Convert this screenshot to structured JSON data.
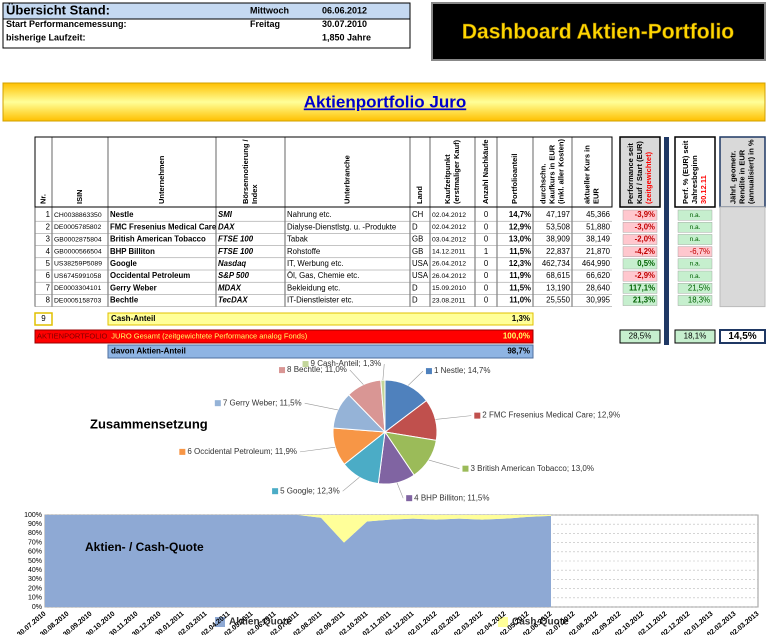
{
  "overview": {
    "rows": [
      [
        "Übersicht Stand:",
        "Mittwoch",
        "06.06.2012"
      ],
      [
        "Start Performancemessung:",
        "Freitag",
        "30.07.2010"
      ],
      [
        "bisherige Laufzeit:",
        "1,850 Jahre"
      ]
    ]
  },
  "title": "Dashboard Aktien-Portfolio",
  "banner": "Aktienportfolio Juro",
  "table": {
    "headers": [
      [
        "Nr."
      ],
      [
        "ISIN"
      ],
      [
        "Unternehmen"
      ],
      [
        "Börsennotierung /",
        "Index"
      ],
      [
        "Unterbranche"
      ],
      [
        "Land"
      ],
      [
        "Kaufzeitpunkt",
        "(erstmaliger Kauf)"
      ],
      [
        "Anzahl Nachkäufe"
      ],
      [
        "Portfolioanteil"
      ],
      [
        "durchschn.",
        "Kaufkurs in EUR",
        "(inkl. aller Kosten)"
      ],
      [
        "aktueller Kurs in",
        "EUR"
      ],
      [
        "Performance seit",
        "Kauf / Start (EUR)",
        "(zeitgewichtet)"
      ],
      [
        "Perf. % (EUR) seit",
        "Jahresbeginn",
        "30.12.11"
      ],
      [
        "Jährl. geometr.",
        "Rendite in EUR",
        "(annualisiert) in %"
      ]
    ],
    "rows": [
      [
        "1",
        "CH0038863350",
        "Nestle",
        "SMI",
        "Nahrung etc.",
        "CH",
        "02.04.2012",
        "0",
        "14,7%",
        "47,197",
        "45,366",
        "-3,9%",
        "n.a."
      ],
      [
        "2",
        "DE0005785802",
        "FMC Fresenius Medical Care",
        "DAX",
        "Dialyse-Dienstlstg. u. -Produkte",
        "D",
        "02.04.2012",
        "0",
        "12,9%",
        "53,508",
        "51,880",
        "-3,0%",
        "n.a."
      ],
      [
        "3",
        "GB0002875804",
        "British American Tobacco",
        "FTSE 100",
        "Tabak",
        "GB",
        "03.04.2012",
        "0",
        "13,0%",
        "38,909",
        "38,149",
        "-2,0%",
        "n.a."
      ],
      [
        "4",
        "GB0000566504",
        "BHP Billiton",
        "FTSE 100",
        "Rohstoffe",
        "GB",
        "14.12.2011",
        "1",
        "11,5%",
        "22,837",
        "21,870",
        "-4,2%",
        "-6,7%"
      ],
      [
        "5",
        "US38259P5089",
        "Google",
        "Nasdaq",
        "IT, Werbung etc.",
        "USA",
        "26.04.2012",
        "0",
        "12,3%",
        "462,734",
        "464,990",
        "0,5%",
        "n.a."
      ],
      [
        "6",
        "US6745991058",
        "Occidental Petroleum",
        "S&P 500",
        "Öl, Gas, Chemie etc.",
        "USA",
        "26.04.2012",
        "0",
        "11,9%",
        "68,615",
        "66,620",
        "-2,9%",
        "n.a."
      ],
      [
        "7",
        "DE0003304101",
        "Gerry Weber",
        "MDAX",
        "Bekleidung etc.",
        "D",
        "15.09.2010",
        "0",
        "11,5%",
        "13,190",
        "28,640",
        "117,1%",
        "21,5%"
      ],
      [
        "8",
        "DE0005158703",
        "Bechtle",
        "TecDAX",
        "IT-Dienstleister etc.",
        "D",
        "23.08.2011",
        "0",
        "11,0%",
        "25,550",
        "30,995",
        "21,3%",
        "18,3%"
      ]
    ],
    "cash": {
      "nr": "9",
      "label": "Cash-Anteil",
      "share": "1,3%"
    },
    "total": {
      "label1": "AKTIENPORTFOLIO",
      "label2": "JURO Gesamt (zeitgewichtete Performance analog Fonds)",
      "share": "100,0%",
      "perf": "28,5%",
      "perf_ytd": "18,1%",
      "annual": "14,5%"
    },
    "stocks": {
      "label": "davon Aktien-Anteil",
      "share": "98,7%"
    }
  },
  "chart_data": [
    {
      "type": "pie",
      "title": "Zusammensetzung",
      "labels": [
        "1 Nestle; 14,7%",
        "2 FMC Fresenius Medical Care; 12,9%",
        "3 British American Tobacco; 13,0%",
        "4 BHP Billiton; 11,5%",
        "5 Google; 12,3%",
        "6 Occidental Petroleum; 11,9%",
        "7 Gerry Weber; 11,5%",
        "8 Bechtle; 11,0%",
        "9 Cash-Anteil; 1,3%"
      ],
      "values": [
        14.7,
        12.9,
        13.0,
        11.5,
        12.3,
        11.9,
        11.5,
        11.0,
        1.3
      ],
      "colors": [
        "#4f81bd",
        "#c0504d",
        "#9bbb59",
        "#8064a2",
        "#4bacc6",
        "#f79646",
        "#95b3d7",
        "#d99694",
        "#c3d69b"
      ]
    },
    {
      "type": "area",
      "title": "Aktien- / Cash-Quote",
      "stacked": true,
      "x": [
        "30.07.2010",
        "30.08.2010",
        "30.09.2010",
        "30.10.2010",
        "30.11.2010",
        "30.12.2010",
        "30.01.2011",
        "02.03.2011",
        "02.04.2011",
        "02.05.2011",
        "02.06.2011",
        "02.07.2011",
        "02.08.2011",
        "02.09.2011",
        "02.10.2011",
        "02.11.2011",
        "02.12.2011",
        "02.01.2012",
        "02.02.2012",
        "02.03.2012",
        "02.04.2012",
        "02.05.2012",
        "02.06.2012",
        "02.07.2012",
        "02.08.2012",
        "02.09.2012",
        "02.10.2012",
        "02.11.2012",
        "02.12.2012",
        "02.01.2013",
        "02.02.2013",
        "02.03.2013"
      ],
      "series": [
        {
          "name": "Aktien-Quote",
          "color": "#8ea9d4",
          "values": [
            100,
            100,
            100,
            100,
            100,
            100,
            100,
            100,
            100,
            100,
            100,
            100,
            97,
            70,
            93,
            95,
            96,
            95,
            96,
            95,
            96,
            98,
            99,
            null,
            null,
            null,
            null,
            null,
            null,
            null,
            null,
            null
          ]
        },
        {
          "name": "Cash-Quote",
          "color": "#ffff99",
          "values": [
            0,
            0,
            0,
            0,
            0,
            0,
            0,
            0,
            0,
            0,
            0,
            0,
            3,
            30,
            7,
            5,
            4,
            5,
            4,
            5,
            4,
            2,
            1,
            null,
            null,
            null,
            null,
            null,
            null,
            null,
            null,
            null
          ]
        }
      ],
      "ylim": [
        0,
        100
      ],
      "yticks": [
        {
          "value": 0,
          "label": "0%"
        },
        {
          "value": 10,
          "label": "10%"
        },
        {
          "value": 20,
          "label": "20%"
        },
        {
          "value": 30,
          "label": "30%"
        },
        {
          "value": 40,
          "label": "40%"
        },
        {
          "value": 50,
          "label": "50%"
        },
        {
          "value": 60,
          "label": "60%"
        },
        {
          "value": 70,
          "label": "70%"
        },
        {
          "value": 80,
          "label": "80%"
        },
        {
          "value": 90,
          "label": "90%"
        },
        {
          "value": 100,
          "label": "100%"
        }
      ],
      "grid": true
    }
  ]
}
